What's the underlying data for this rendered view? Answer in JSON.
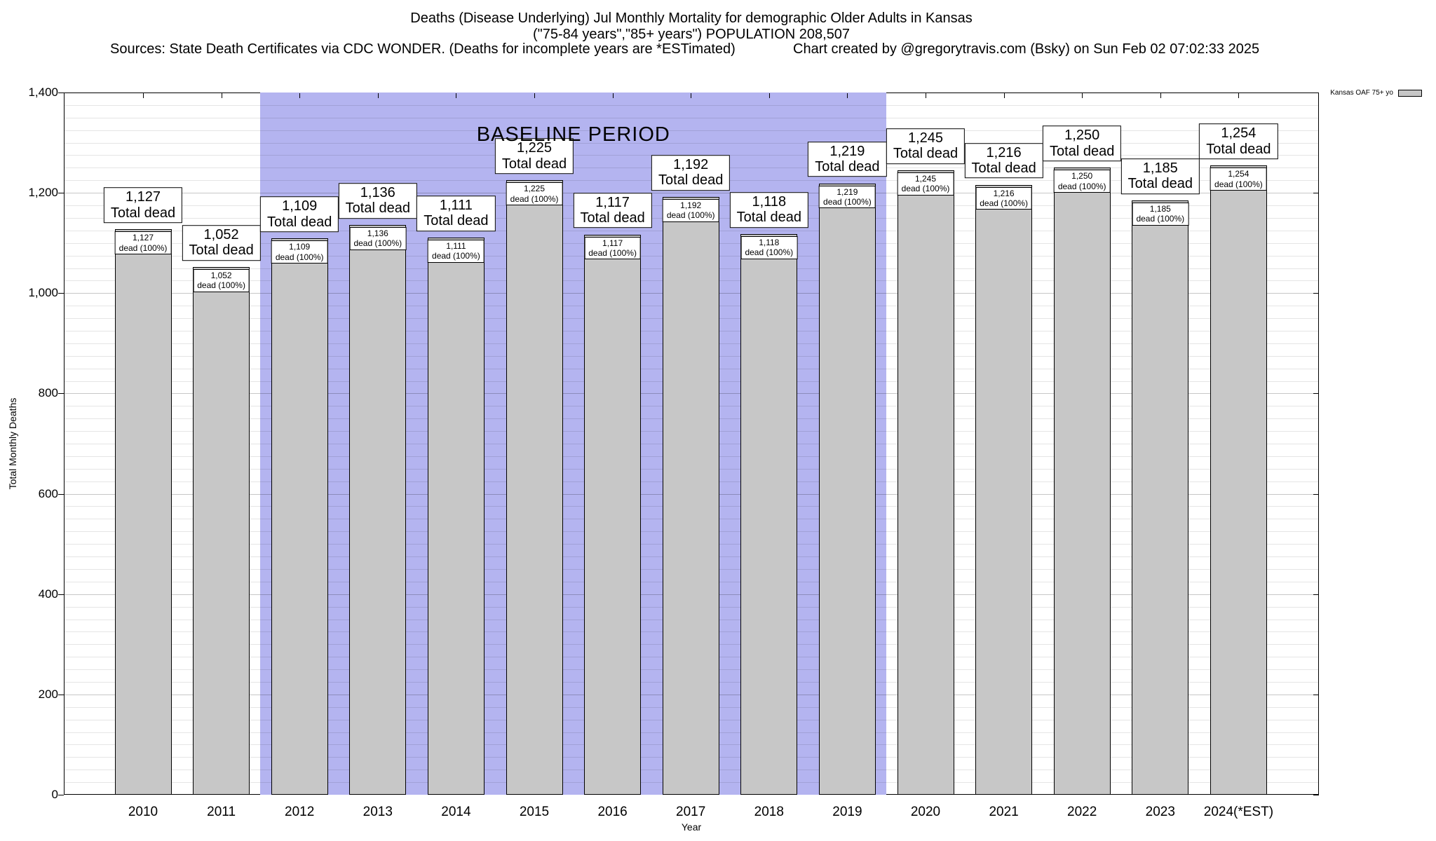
{
  "header": {
    "title_line1": "Deaths (Disease Underlying) Jul Monthly Mortality for demographic Older Adults in Kansas",
    "title_line2": "(\"75-84 years\",\"85+ years\") POPULATION 208,507",
    "sources_line": "Sources: State Death Certificates via CDC WONDER. (Deaths for incomplete years are *ESTimated)",
    "credit_line": "Chart created by @gregorytravis.com (Bsky) on Sun Feb 02 07:02:33 2025"
  },
  "chart_data": {
    "type": "bar",
    "title": "Deaths (Disease Underlying) Jul Monthly Mortality for demographic Older Adults in Kansas (\"75-84 years\",\"85+ years\") POPULATION 208,507",
    "xlabel": "Year",
    "ylabel": "Total Monthly Deaths",
    "ylim": [
      0,
      1400
    ],
    "ytick_step": 200,
    "ytick_minor_step": 25,
    "grid": true,
    "legend_position": "top-right",
    "legend_label": "Kansas OAF 75+ yo",
    "categories": [
      "2010",
      "2011",
      "2012",
      "2013",
      "2014",
      "2015",
      "2016",
      "2017",
      "2018",
      "2019",
      "2020",
      "2021",
      "2022",
      "2023",
      "2024(*EST)"
    ],
    "values": [
      1127,
      1052,
      1109,
      1136,
      1111,
      1225,
      1117,
      1192,
      1118,
      1219,
      1245,
      1216,
      1250,
      1185,
      1254
    ],
    "display_values": [
      "1,127",
      "1,052",
      "1,109",
      "1,136",
      "1,111",
      "1,225",
      "1,117",
      "1,192",
      "1,118",
      "1,219",
      "1,245",
      "1,216",
      "1,250",
      "1,185",
      "1,254"
    ],
    "bar_top_label_suffix": "Total dead",
    "bar_inner_label_suffix": "dead (100%)",
    "baseline_period": {
      "label": "BASELINE PERIOD",
      "start_category": "2012",
      "end_category": "2019",
      "start_index": 2,
      "end_index": 9
    },
    "colors": {
      "bar_fill": "#c7c7c7",
      "bar_border": "#000000",
      "baseline_fill": "#b4b4f0",
      "axis": "#000000",
      "background": "#ffffff"
    }
  }
}
